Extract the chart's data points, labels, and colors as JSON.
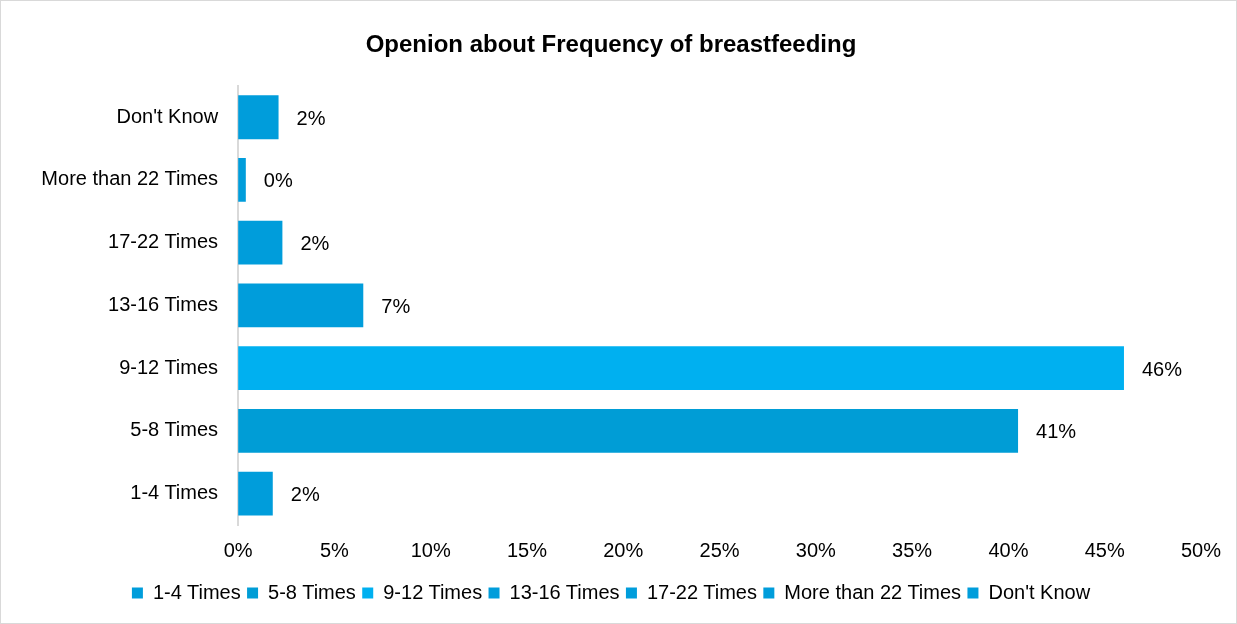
{
  "chart_data": {
    "type": "bar",
    "orientation": "horizontal",
    "title": "Openion about Frequency of breastfeeding",
    "categories": [
      "Don't Know",
      "More than 22 Times",
      "17-22 Times",
      "13-16 Times",
      "9-12 Times",
      "5-8 Times",
      "1-4 Times"
    ],
    "series": [
      {
        "name": "1-4 Times",
        "color": "#009ddb",
        "values": [
          null,
          null,
          null,
          null,
          null,
          null,
          1.8
        ],
        "value_labels": [
          null,
          null,
          null,
          null,
          null,
          null,
          "2%"
        ]
      },
      {
        "name": "5-8 Times",
        "color": "#009dd6",
        "values": [
          null,
          null,
          null,
          null,
          null,
          40.5,
          null
        ],
        "value_labels": [
          null,
          null,
          null,
          null,
          null,
          "41%",
          null
        ]
      },
      {
        "name": "9-12 Times",
        "color": "#00b0f0",
        "values": [
          null,
          null,
          null,
          null,
          46.0,
          null,
          null
        ],
        "value_labels": [
          null,
          null,
          null,
          null,
          "46%",
          null,
          null
        ]
      },
      {
        "name": "13-16 Times",
        "color": "#009ddb",
        "values": [
          null,
          null,
          null,
          6.5,
          null,
          null,
          null
        ],
        "value_labels": [
          null,
          null,
          null,
          "7%",
          null,
          null,
          null
        ]
      },
      {
        "name": "17-22 Times",
        "color": "#009ddb",
        "values": [
          null,
          null,
          2.3,
          null,
          null,
          null,
          null
        ],
        "value_labels": [
          null,
          null,
          "2%",
          null,
          null,
          null,
          null
        ]
      },
      {
        "name": "More than 22 Times",
        "color": "#009ddb",
        "values": [
          null,
          0.4,
          null,
          null,
          null,
          null,
          null
        ],
        "value_labels": [
          null,
          "0%",
          null,
          null,
          null,
          null,
          null
        ]
      },
      {
        "name": "Don't Know",
        "color": "#009ddb",
        "values": [
          2.1,
          null,
          null,
          null,
          null,
          null,
          null
        ],
        "value_labels": [
          "2%",
          null,
          null,
          null,
          null,
          null,
          null
        ]
      }
    ],
    "xlim": [
      0,
      50
    ],
    "xticks": [
      {
        "value": 0,
        "label": "0%"
      },
      {
        "value": 5,
        "label": "5%"
      },
      {
        "value": 10,
        "label": "10%"
      },
      {
        "value": 15,
        "label": "15%"
      },
      {
        "value": 20,
        "label": "20%"
      },
      {
        "value": 25,
        "label": "25%"
      },
      {
        "value": 30,
        "label": "30%"
      },
      {
        "value": 35,
        "label": "35%"
      },
      {
        "value": 40,
        "label": "40%"
      },
      {
        "value": 45,
        "label": "45%"
      },
      {
        "value": 50,
        "label": "50%"
      }
    ],
    "grid": false,
    "legend": "bottom"
  }
}
